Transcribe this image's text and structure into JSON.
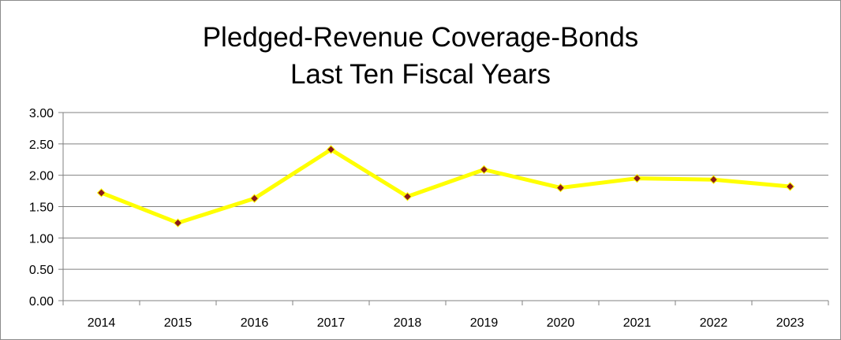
{
  "chart_data": {
    "type": "line",
    "title_lines": [
      "Pledged-Revenue Coverage-Bonds",
      "Last Ten Fiscal Years"
    ],
    "title": "Pledged-Revenue Coverage-Bonds Last Ten Fiscal Years",
    "xlabel": "",
    "ylabel": "",
    "categories": [
      "2014",
      "2015",
      "2016",
      "2017",
      "2018",
      "2019",
      "2020",
      "2021",
      "2022",
      "2023"
    ],
    "values": [
      1.72,
      1.24,
      1.63,
      2.41,
      1.66,
      2.09,
      1.8,
      1.95,
      1.93,
      1.82
    ],
    "ylim": [
      0,
      3
    ],
    "yticks": [
      "0.00",
      "0.50",
      "1.00",
      "1.50",
      "2.00",
      "2.50",
      "3.00"
    ],
    "grid": true,
    "legend": "none",
    "line_color": "#FFFF00",
    "marker_color": "#8B1A1A",
    "grid_color": "#808080"
  }
}
